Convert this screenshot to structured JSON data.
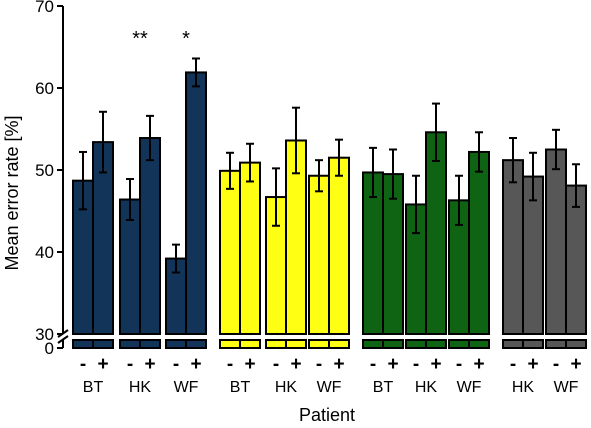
{
  "chart_data": {
    "type": "bar",
    "title": "",
    "xlabel": "Patient",
    "ylabel": "Mean error rate [%]",
    "ylim": [
      30,
      70
    ],
    "y_axis_break": [
      0,
      30
    ],
    "y_ticks": [
      "70",
      "60",
      "50",
      "40",
      "30",
      "0"
    ],
    "condition_labels": [
      "-",
      "+"
    ],
    "grid": false,
    "legend": "none",
    "groups": [
      {
        "color": "#123458",
        "patients": [
          {
            "label": "BT",
            "values": [
              48.7,
              53.4
            ],
            "errors": [
              3.5,
              3.7
            ],
            "significance": ""
          },
          {
            "label": "HK",
            "values": [
              46.4,
              53.9
            ],
            "errors": [
              2.5,
              2.7
            ],
            "significance": "**"
          },
          {
            "label": "WF",
            "values": [
              39.2,
              61.9
            ],
            "errors": [
              1.7,
              1.7
            ],
            "significance": "*"
          }
        ]
      },
      {
        "color": "#ffff14",
        "patients": [
          {
            "label": "BT",
            "values": [
              49.9,
              50.9
            ],
            "errors": [
              2.2,
              2.3
            ],
            "significance": ""
          },
          {
            "label": "HK",
            "values": [
              46.7,
              53.6
            ],
            "errors": [
              3.5,
              4.0
            ],
            "significance": ""
          },
          {
            "label": "WF",
            "values": [
              49.3,
              51.5
            ],
            "errors": [
              1.9,
              2.2
            ],
            "significance": ""
          }
        ]
      },
      {
        "color": "#0f6414",
        "patients": [
          {
            "label": "BT",
            "values": [
              49.7,
              49.5
            ],
            "errors": [
              3.0,
              3.0
            ],
            "significance": ""
          },
          {
            "label": "HK",
            "values": [
              45.8,
              54.6
            ],
            "errors": [
              3.5,
              3.5
            ],
            "significance": ""
          },
          {
            "label": "WF",
            "values": [
              46.3,
              52.2
            ],
            "errors": [
              3.0,
              2.4
            ],
            "significance": ""
          }
        ]
      },
      {
        "color": "#575757",
        "patients": [
          {
            "label": "HK",
            "values": [
              51.2,
              49.2
            ],
            "errors": [
              2.7,
              2.9
            ],
            "significance": ""
          },
          {
            "label": "WF",
            "values": [
              52.5,
              48.1
            ],
            "errors": [
              2.4,
              2.6
            ],
            "significance": ""
          }
        ]
      }
    ]
  }
}
